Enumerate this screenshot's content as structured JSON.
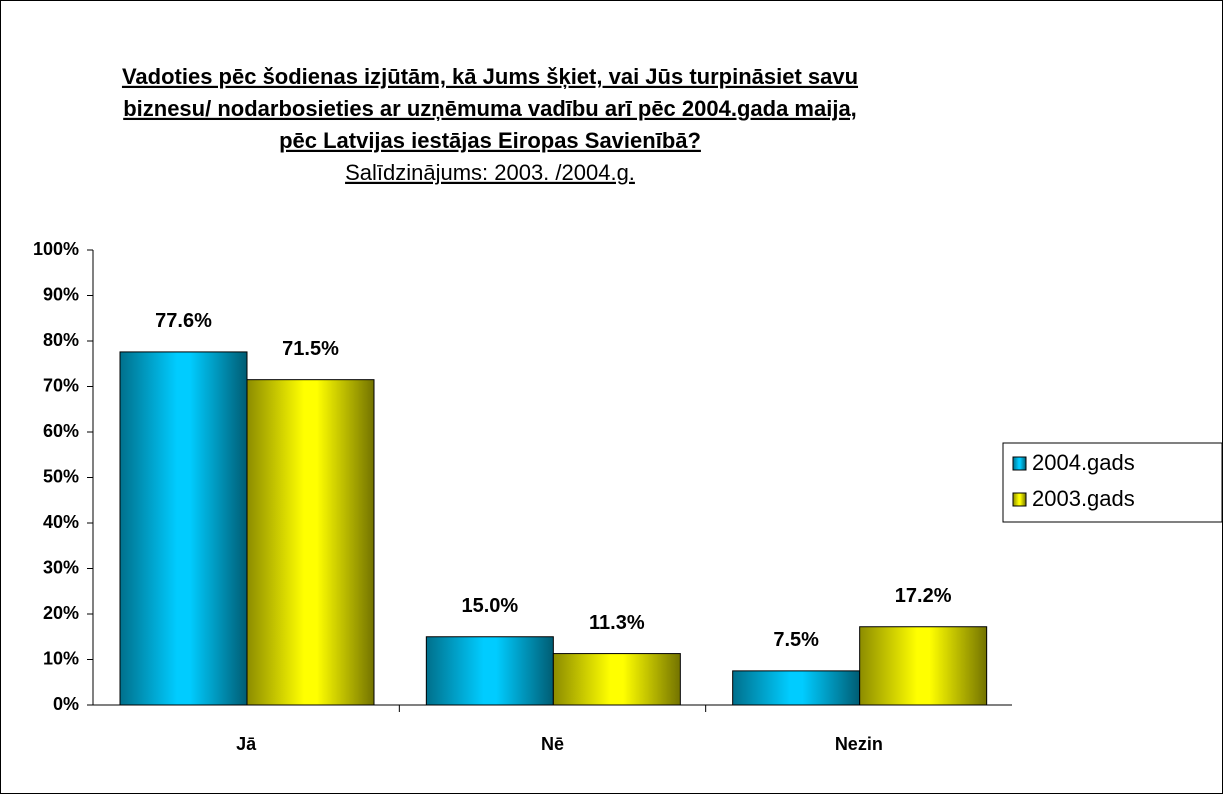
{
  "chart_data": {
    "type": "bar",
    "title": [
      "Vadoties pēc šodienas izjūtām, kā Jums šķiet, vai Jūs turpināsiet savu",
      "biznesu/ nodarbosieties ar uzņēmuma vadību arī pēc 2004.gada maija,",
      "pēc  Latvijas iestājas Eiropas Savienībā?"
    ],
    "subtitle": "Salīdzinājums: 2003. /2004.g.",
    "categories": [
      "Jā",
      "Nē",
      "Nezin"
    ],
    "series": [
      {
        "name": "2004.gads",
        "color": "#00ccff",
        "values": [
          77.6,
          15.0,
          7.5
        ],
        "value_labels": [
          "77.6%",
          "15.0%",
          "7.5%"
        ]
      },
      {
        "name": "2003.gads",
        "color": "#ffff00",
        "values": [
          71.5,
          11.3,
          17.2
        ],
        "value_labels": [
          "71.5%",
          "11.3%",
          "17.2%"
        ]
      }
    ],
    "ylim": [
      0,
      100
    ],
    "yticks": [
      {
        "value": 0,
        "label": "0%"
      },
      {
        "value": 10,
        "label": "10%"
      },
      {
        "value": 20,
        "label": "20%"
      },
      {
        "value": 30,
        "label": "30%"
      },
      {
        "value": 40,
        "label": "40%"
      },
      {
        "value": 50,
        "label": "50%"
      },
      {
        "value": 60,
        "label": "60%"
      },
      {
        "value": 70,
        "label": "70%"
      },
      {
        "value": 80,
        "label": "80%"
      },
      {
        "value": 90,
        "label": "90%"
      },
      {
        "value": 100,
        "label": "100%"
      }
    ],
    "legend": "right"
  }
}
